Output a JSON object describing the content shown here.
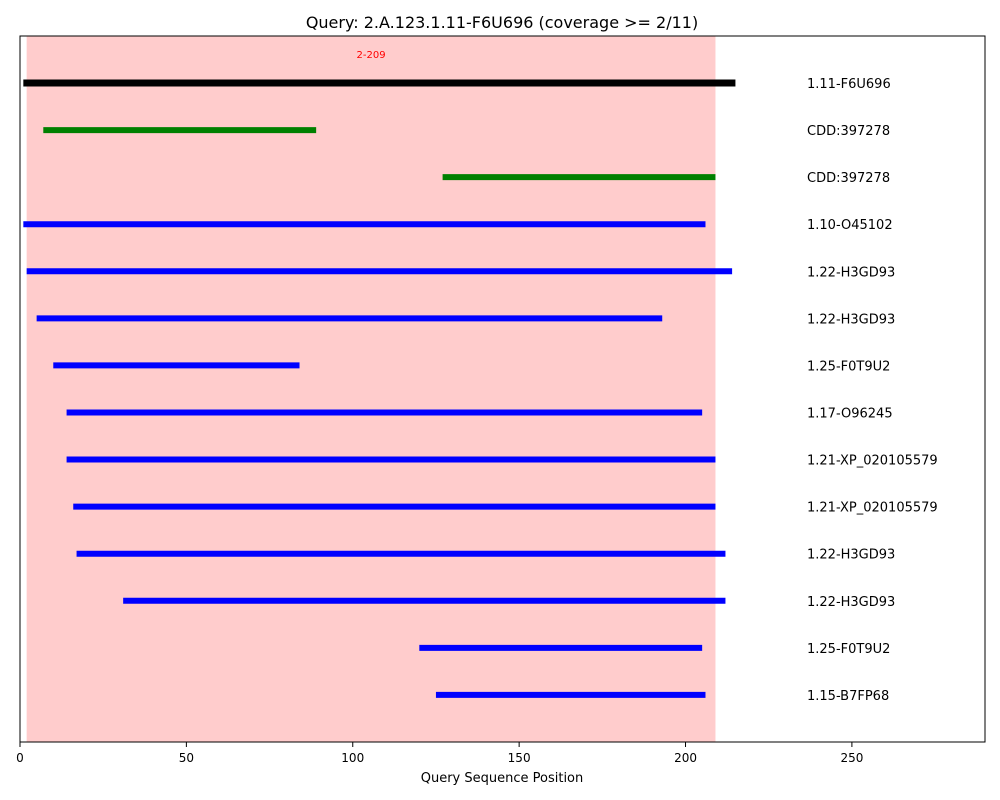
{
  "chart_data": {
    "type": "line",
    "title": "Query: 2.A.123.1.11-F6U696 (coverage >= 2/11)",
    "xlabel": "Query Sequence Position",
    "ylabel": "",
    "xlim": [
      0,
      290
    ],
    "xticks": [
      0,
      50,
      100,
      150,
      200,
      250
    ],
    "grid": false,
    "highlight_region": {
      "start": 2,
      "end": 209,
      "label": "2-209",
      "color": "#ffcccc",
      "label_color": "#ff0000"
    },
    "colors": {
      "query": "#000000",
      "domain": "#008000",
      "hit": "#0000ff"
    },
    "segments": [
      {
        "label": "1.11-F6U696",
        "start": 1,
        "end": 215,
        "kind": "query"
      },
      {
        "label": "CDD:397278",
        "start": 7,
        "end": 89,
        "kind": "domain"
      },
      {
        "label": "CDD:397278",
        "start": 127,
        "end": 209,
        "kind": "domain"
      },
      {
        "label": "1.10-O45102",
        "start": 1,
        "end": 206,
        "kind": "hit"
      },
      {
        "label": "1.22-H3GD93",
        "start": 2,
        "end": 214,
        "kind": "hit"
      },
      {
        "label": "1.22-H3GD93",
        "start": 5,
        "end": 193,
        "kind": "hit"
      },
      {
        "label": "1.25-F0T9U2",
        "start": 10,
        "end": 84,
        "kind": "hit"
      },
      {
        "label": "1.17-O96245",
        "start": 14,
        "end": 205,
        "kind": "hit"
      },
      {
        "label": "1.21-XP_020105579",
        "start": 14,
        "end": 209,
        "kind": "hit"
      },
      {
        "label": "1.21-XP_020105579",
        "start": 16,
        "end": 209,
        "kind": "hit"
      },
      {
        "label": "1.22-H3GD93",
        "start": 17,
        "end": 212,
        "kind": "hit"
      },
      {
        "label": "1.22-H3GD93",
        "start": 31,
        "end": 212,
        "kind": "hit"
      },
      {
        "label": "1.25-F0T9U2",
        "start": 120,
        "end": 205,
        "kind": "hit"
      },
      {
        "label": "1.15-B7FP68",
        "start": 125,
        "end": 206,
        "kind": "hit"
      }
    ]
  }
}
